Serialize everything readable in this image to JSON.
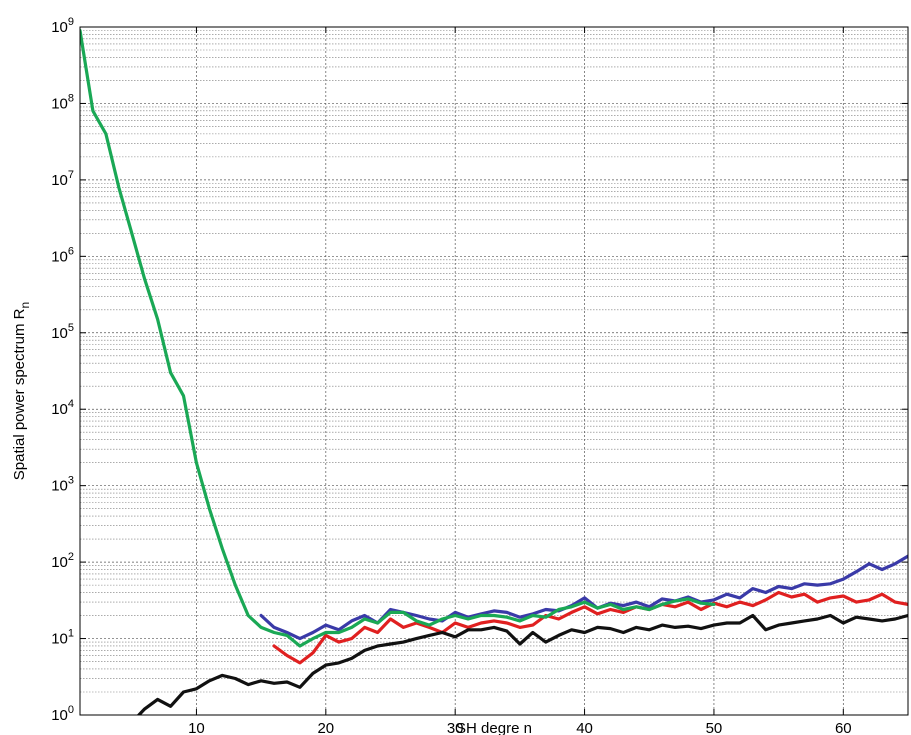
{
  "chart_data": {
    "type": "line",
    "xlabel": "SH degre n",
    "ylabel": "Spatial power spectrum R",
    "ylabel_sub": "n",
    "xlim": [
      1,
      65
    ],
    "ylim": [
      1,
      1000000000
    ],
    "yscale": "log",
    "grid": true,
    "x_ticks": [
      10,
      20,
      30,
      40,
      50,
      60
    ],
    "y_ticks": [
      {
        "base": "10",
        "exp": "0"
      },
      {
        "base": "10",
        "exp": "1"
      },
      {
        "base": "10",
        "exp": "2"
      },
      {
        "base": "10",
        "exp": "3"
      },
      {
        "base": "10",
        "exp": "4"
      },
      {
        "base": "10",
        "exp": "5"
      },
      {
        "base": "10",
        "exp": "6"
      },
      {
        "base": "10",
        "exp": "7"
      },
      {
        "base": "10",
        "exp": "8"
      },
      {
        "base": "10",
        "exp": "9"
      }
    ],
    "series": [
      {
        "color": "#3a3aa8",
        "x": [
          15,
          16,
          17,
          18,
          19,
          20,
          21,
          22,
          23,
          24,
          25,
          26,
          27,
          28,
          29,
          30,
          31,
          32,
          33,
          34,
          35,
          36,
          37,
          38,
          39,
          40,
          41,
          42,
          43,
          44,
          45,
          46,
          47,
          48,
          49,
          50,
          51,
          52,
          53,
          54,
          55,
          56,
          57,
          58,
          59,
          60,
          61,
          62,
          63,
          64,
          65
        ],
        "y": [
          20,
          14,
          12,
          10,
          12,
          15,
          13,
          17,
          20,
          16,
          24,
          22,
          20,
          18,
          17,
          22,
          19,
          21,
          23,
          22,
          19,
          21,
          24,
          23,
          27,
          34,
          25,
          29,
          27,
          30,
          26,
          33,
          31,
          35,
          30,
          32,
          38,
          34,
          45,
          40,
          48,
          45,
          52,
          50,
          52,
          60,
          75,
          95,
          80,
          95,
          120
        ]
      },
      {
        "color": "#e02020",
        "x": [
          16,
          17,
          18,
          19,
          20,
          21,
          22,
          23,
          24,
          25,
          26,
          27,
          28,
          29,
          30,
          31,
          32,
          33,
          34,
          35,
          36,
          37,
          38,
          39,
          40,
          41,
          42,
          43,
          44,
          45,
          46,
          47,
          48,
          49,
          50,
          51,
          52,
          53,
          54,
          55,
          56,
          57,
          58,
          59,
          60,
          61,
          62,
          63,
          64,
          65
        ],
        "y": [
          8,
          6,
          4.8,
          6.5,
          11,
          9,
          10,
          14,
          12,
          18,
          14,
          16,
          14,
          12,
          16,
          14,
          16,
          17,
          16,
          14,
          15,
          20,
          18,
          22,
          26,
          21,
          24,
          22,
          26,
          24,
          28,
          26,
          30,
          24,
          29,
          26,
          30,
          27,
          32,
          40,
          35,
          38,
          30,
          34,
          36,
          30,
          32,
          38,
          30,
          28
        ]
      },
      {
        "color": "#111111",
        "x": [
          5,
          6,
          7,
          8,
          9,
          10,
          11,
          12,
          13,
          14,
          15,
          16,
          17,
          18,
          19,
          20,
          21,
          22,
          23,
          24,
          25,
          26,
          27,
          28,
          29,
          30,
          31,
          32,
          33,
          34,
          35,
          36,
          37,
          38,
          39,
          40,
          41,
          42,
          43,
          44,
          45,
          46,
          47,
          48,
          49,
          50,
          51,
          52,
          53,
          54,
          55,
          56,
          57,
          58,
          59,
          60,
          61,
          62,
          63,
          64,
          65
        ],
        "y": [
          0.8,
          1.2,
          1.6,
          1.3,
          2.0,
          2.2,
          2.8,
          3.3,
          3.0,
          2.5,
          2.8,
          2.6,
          2.7,
          2.3,
          3.5,
          4.5,
          4.8,
          5.5,
          7,
          8,
          8.5,
          9,
          10,
          11,
          12,
          10.5,
          13,
          13,
          14,
          12.5,
          8.5,
          12,
          9,
          11,
          13,
          12,
          14,
          13.5,
          12,
          14,
          13,
          15,
          14,
          14.5,
          13.5,
          15,
          16,
          16,
          20,
          13,
          15,
          16,
          17,
          18,
          20,
          16,
          19,
          18,
          17,
          18,
          20
        ]
      },
      {
        "color": "#1aa855",
        "x": [
          1,
          2,
          3,
          4,
          5,
          6,
          7,
          8,
          9,
          10,
          11,
          12,
          13,
          14,
          15,
          16,
          17,
          18,
          19,
          20,
          21,
          22,
          23,
          24,
          25,
          26,
          27,
          28,
          29,
          30,
          31,
          32,
          33,
          34,
          35,
          36,
          37,
          38,
          39,
          40,
          41,
          42,
          43,
          44,
          45,
          46,
          47,
          48,
          49,
          50
        ],
        "y": [
          900000000,
          80000000,
          40000000,
          8000000,
          2000000,
          500000,
          150000,
          30000,
          15000,
          2000,
          500,
          150,
          50,
          20,
          14,
          12,
          11,
          8,
          10,
          12,
          12,
          14,
          18,
          16,
          22,
          22,
          17,
          15,
          18,
          20,
          18,
          20,
          20,
          19,
          17,
          20,
          19,
          24,
          26,
          30,
          25,
          28,
          24,
          26,
          24,
          28,
          31,
          33,
          29,
          28
        ]
      }
    ]
  }
}
